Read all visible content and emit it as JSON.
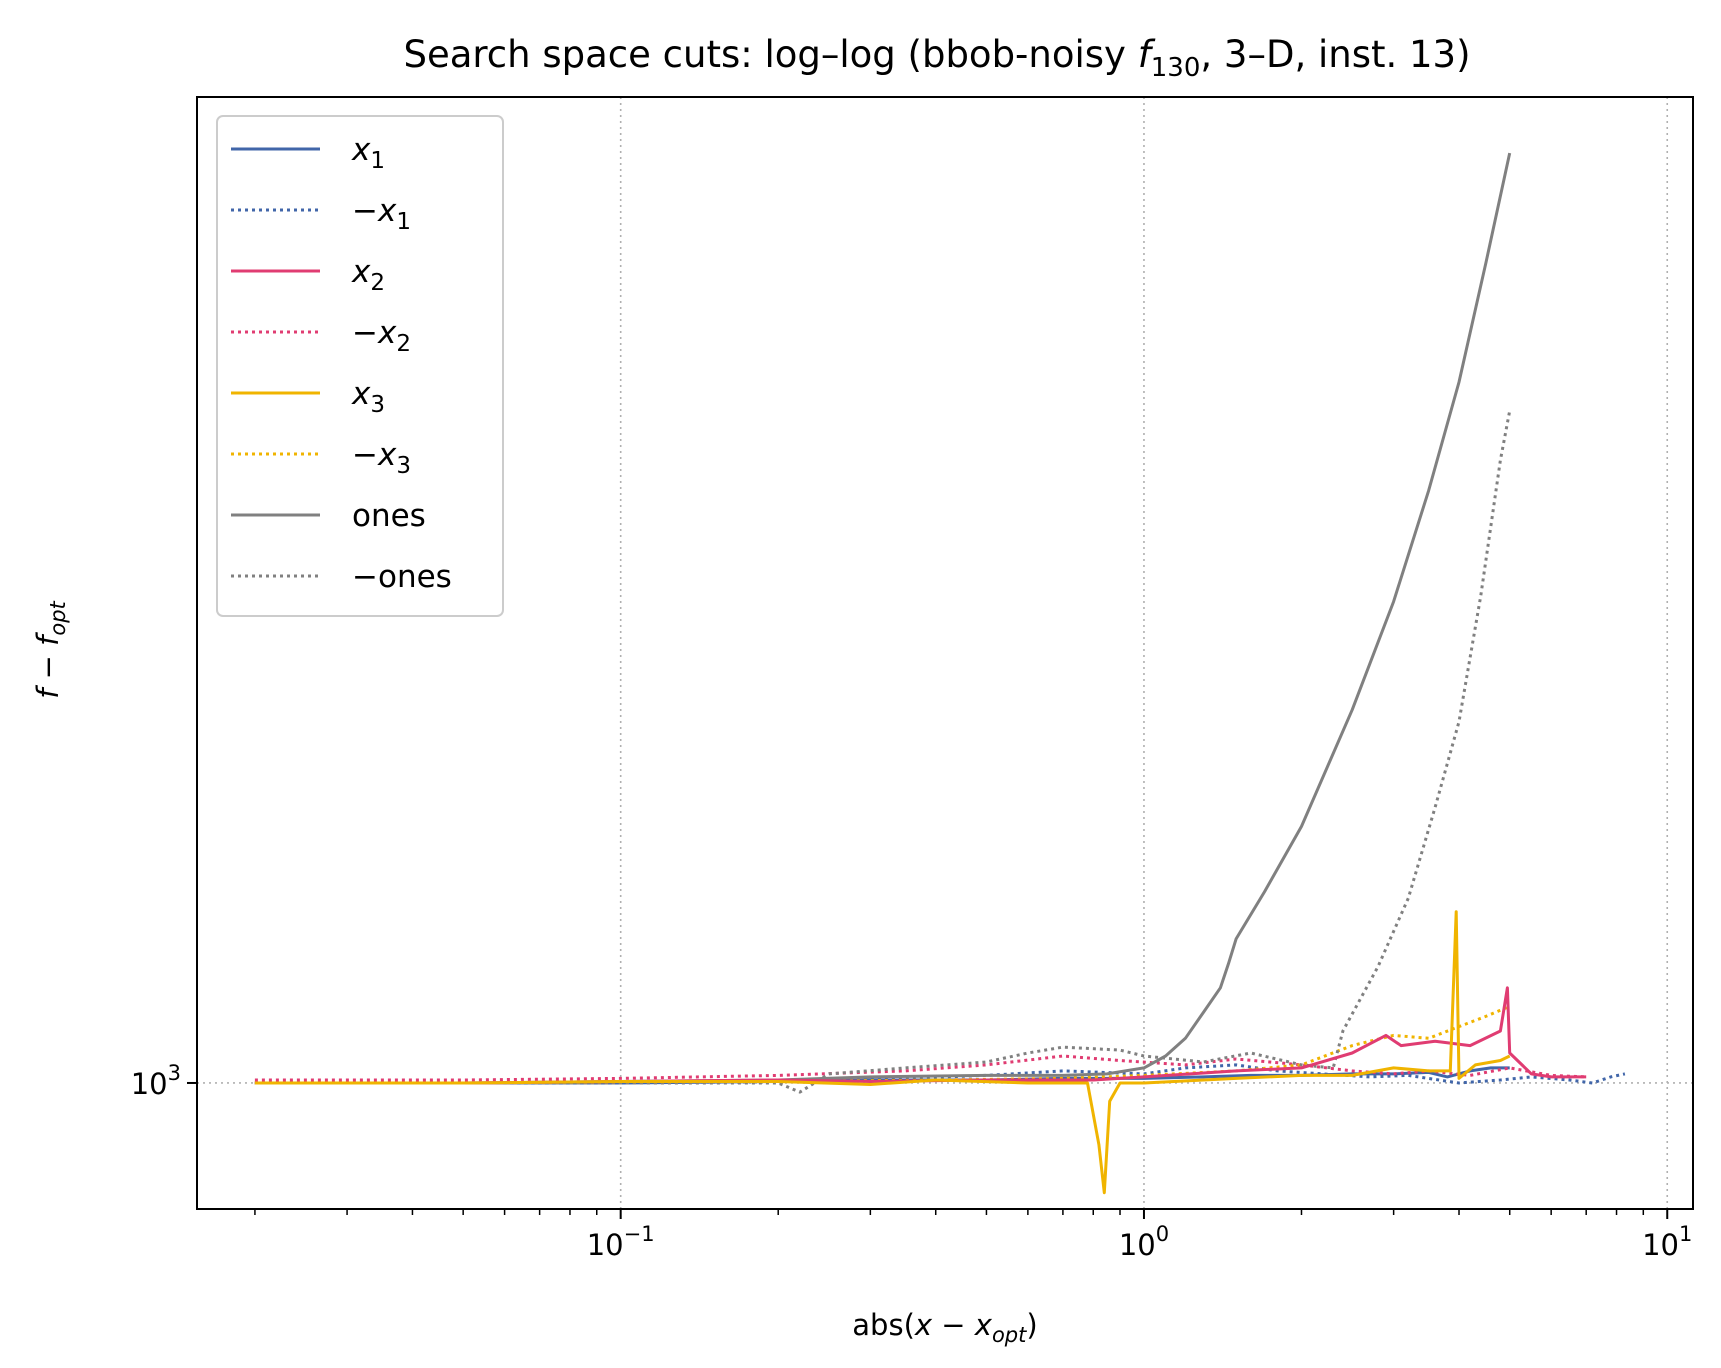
{
  "chart_data": {
    "type": "line",
    "title": "Search space cuts: log–log (bbob-noisy f130, 3–D, inst. 13)",
    "title_parts": {
      "prefix": "Search space cuts: log–log (bbob-noisy ",
      "func": "f",
      "func_sub": "130",
      "suffix": ", 3–D, inst. 13)"
    },
    "xlabel": "abs(x − x_opt)",
    "xlabel_parts": {
      "pre": "abs(",
      "var": "x − x",
      "sub": "opt",
      "post": ")"
    },
    "ylabel": "f − f_opt",
    "ylabel_parts": {
      "var": "f − f",
      "sub": "opt"
    },
    "xscale": "log",
    "yscale": "log",
    "xlim": [
      0.0155,
      11.2
    ],
    "ylim": [
      920,
      1920
    ],
    "grid": true,
    "legend_position": "upper-left",
    "x_ticks": [
      {
        "value": 0.1,
        "base": "10",
        "exp": "−1"
      },
      {
        "value": 1,
        "base": "10",
        "exp": "0"
      },
      {
        "value": 10,
        "base": "10",
        "exp": "1"
      }
    ],
    "y_ticks": [
      {
        "value": 1000,
        "base": "10",
        "exp": "3"
      }
    ],
    "series": [
      {
        "name": "x1",
        "label_var": "x",
        "label_sub": "1",
        "label_neg": false,
        "color": "#4166a9",
        "dash": "solid",
        "points": [
          [
            0.02,
            1000
          ],
          [
            0.05,
            1000
          ],
          [
            0.1,
            1000
          ],
          [
            0.2,
            1001
          ],
          [
            0.3,
            1002
          ],
          [
            0.5,
            1002
          ],
          [
            0.7,
            1003
          ],
          [
            1.0,
            1003
          ],
          [
            1.3,
            1004
          ],
          [
            1.6,
            1005
          ],
          [
            2.0,
            1005
          ],
          [
            2.5,
            1006
          ],
          [
            3.0,
            1006
          ],
          [
            3.5,
            1007
          ],
          [
            3.8,
            1004
          ],
          [
            4.2,
            1008
          ],
          [
            4.6,
            1010
          ],
          [
            5.0,
            1010
          ]
        ]
      },
      {
        "name": "−x1",
        "label_var": "x",
        "label_sub": "1",
        "label_neg": true,
        "color": "#4166a9",
        "dash": "dotted",
        "points": [
          [
            0.02,
            1000
          ],
          [
            0.05,
            1000
          ],
          [
            0.1,
            1000
          ],
          [
            0.2,
            1001
          ],
          [
            0.35,
            1003
          ],
          [
            0.5,
            1005
          ],
          [
            0.7,
            1008
          ],
          [
            1.0,
            1006
          ],
          [
            1.2,
            1010
          ],
          [
            1.5,
            1012
          ],
          [
            1.8,
            1008
          ],
          [
            2.2,
            1006
          ],
          [
            2.7,
            1004
          ],
          [
            3.2,
            1005
          ],
          [
            4.0,
            1000
          ],
          [
            4.8,
            1002
          ],
          [
            5.5,
            1004
          ],
          [
            6.5,
            1002
          ],
          [
            7.2,
            1000
          ],
          [
            7.8,
            1004
          ],
          [
            8.3,
            1006
          ]
        ]
      },
      {
        "name": "x2",
        "label_var": "x",
        "label_sub": "2",
        "label_neg": false,
        "color": "#e03c72",
        "dash": "solid",
        "points": [
          [
            0.02,
            1000
          ],
          [
            0.05,
            1000
          ],
          [
            0.1,
            1001
          ],
          [
            0.2,
            1002
          ],
          [
            0.3,
            1001
          ],
          [
            0.5,
            1002
          ],
          [
            0.8,
            1002
          ],
          [
            1.0,
            1004
          ],
          [
            1.5,
            1008
          ],
          [
            2.0,
            1010
          ],
          [
            2.5,
            1020
          ],
          [
            2.9,
            1032
          ],
          [
            3.1,
            1025
          ],
          [
            3.6,
            1028
          ],
          [
            4.2,
            1025
          ],
          [
            4.8,
            1035
          ],
          [
            4.95,
            1065
          ],
          [
            5.0,
            1020
          ],
          [
            5.5,
            1006
          ],
          [
            6.0,
            1004
          ],
          [
            7.0,
            1004
          ]
        ]
      },
      {
        "name": "−x2",
        "label_var": "x",
        "label_sub": "2",
        "label_neg": true,
        "color": "#e03c72",
        "dash": "dotted",
        "points": [
          [
            0.02,
            1002
          ],
          [
            0.05,
            1002
          ],
          [
            0.1,
            1003
          ],
          [
            0.2,
            1005
          ],
          [
            0.35,
            1008
          ],
          [
            0.5,
            1012
          ],
          [
            0.7,
            1018
          ],
          [
            0.9,
            1015
          ],
          [
            1.2,
            1012
          ],
          [
            1.5,
            1016
          ],
          [
            2.0,
            1012
          ],
          [
            2.5,
            1008
          ],
          [
            3.0,
            1006
          ],
          [
            3.5,
            1008
          ],
          [
            4.2,
            1005
          ],
          [
            5.0,
            1010
          ],
          [
            6.0,
            1005
          ],
          [
            7.0,
            1004
          ]
        ]
      },
      {
        "name": "x3",
        "label_var": "x",
        "label_sub": "3",
        "label_neg": false,
        "color": "#f0b400",
        "dash": "solid",
        "points": [
          [
            0.02,
            1000
          ],
          [
            0.05,
            1000
          ],
          [
            0.1,
            1001
          ],
          [
            0.2,
            1001
          ],
          [
            0.3,
            999
          ],
          [
            0.4,
            1002
          ],
          [
            0.6,
            1000
          ],
          [
            0.78,
            1000
          ],
          [
            0.82,
            960
          ],
          [
            0.84,
            930
          ],
          [
            0.86,
            988
          ],
          [
            0.9,
            1000
          ],
          [
            1.0,
            1000
          ],
          [
            1.5,
            1003
          ],
          [
            2.0,
            1005
          ],
          [
            2.5,
            1005
          ],
          [
            3.0,
            1010
          ],
          [
            3.5,
            1008
          ],
          [
            3.85,
            1008
          ],
          [
            3.95,
            1120
          ],
          [
            4.0,
            1003
          ],
          [
            4.3,
            1012
          ],
          [
            4.8,
            1015
          ],
          [
            5.0,
            1018
          ]
        ]
      },
      {
        "name": "−x3",
        "label_var": "x",
        "label_sub": "3",
        "label_neg": true,
        "color": "#f0b400",
        "dash": "dotted",
        "points": [
          [
            0.02,
            1000
          ],
          [
            0.05,
            1000
          ],
          [
            0.1,
            1000
          ],
          [
            0.2,
            1001
          ],
          [
            0.4,
            1002
          ],
          [
            0.7,
            1003
          ],
          [
            1.0,
            1005
          ],
          [
            1.5,
            1008
          ],
          [
            2.0,
            1012
          ],
          [
            2.5,
            1025
          ],
          [
            3.0,
            1032
          ],
          [
            3.5,
            1030
          ],
          [
            4.0,
            1038
          ],
          [
            4.5,
            1045
          ],
          [
            5.0,
            1052
          ]
        ]
      },
      {
        "name": "ones",
        "label_var": "",
        "label_sub": "",
        "label_text": "ones",
        "label_neg": false,
        "color": "#808080",
        "dash": "solid",
        "points": [
          [
            0.02,
            1000
          ],
          [
            0.05,
            1000
          ],
          [
            0.1,
            1001
          ],
          [
            0.2,
            1002
          ],
          [
            0.3,
            1004
          ],
          [
            0.5,
            1005
          ],
          [
            0.7,
            1005
          ],
          [
            0.85,
            1006
          ],
          [
            1.0,
            1010
          ],
          [
            1.1,
            1018
          ],
          [
            1.2,
            1030
          ],
          [
            1.3,
            1048
          ],
          [
            1.4,
            1065
          ],
          [
            1.45,
            1082
          ],
          [
            1.5,
            1100
          ],
          [
            1.7,
            1135
          ],
          [
            2.0,
            1185
          ],
          [
            2.5,
            1280
          ],
          [
            3.0,
            1375
          ],
          [
            3.5,
            1480
          ],
          [
            4.0,
            1590
          ],
          [
            4.5,
            1720
          ],
          [
            5.0,
            1850
          ]
        ]
      },
      {
        "name": "−ones",
        "label_var": "",
        "label_sub": "",
        "label_text": "ones",
        "label_neg": true,
        "color": "#808080",
        "dash": "dotted",
        "points": [
          [
            0.02,
            1000
          ],
          [
            0.1,
            1000
          ],
          [
            0.2,
            1000
          ],
          [
            0.22,
            994
          ],
          [
            0.25,
            1006
          ],
          [
            0.35,
            1010
          ],
          [
            0.5,
            1014
          ],
          [
            0.6,
            1020
          ],
          [
            0.7,
            1024
          ],
          [
            0.9,
            1022
          ],
          [
            1.0,
            1018
          ],
          [
            1.3,
            1014
          ],
          [
            1.6,
            1020
          ],
          [
            2.0,
            1012
          ],
          [
            2.3,
            1010
          ],
          [
            2.4,
            1035
          ],
          [
            2.8,
            1080
          ],
          [
            3.2,
            1130
          ],
          [
            3.6,
            1200
          ],
          [
            4.0,
            1270
          ],
          [
            4.4,
            1380
          ],
          [
            4.8,
            1510
          ],
          [
            5.0,
            1560
          ]
        ]
      }
    ]
  }
}
